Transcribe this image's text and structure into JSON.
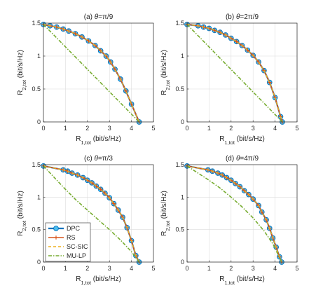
{
  "colors": {
    "DPC": "#0072BD",
    "DPC_marker_fill": "#4DBEEE",
    "RS": "#D95319",
    "SC-SIC": "#EDB120",
    "MU-LP": "#77AC30",
    "axis": "#262626",
    "grid": "#dcdcdc"
  },
  "legend": {
    "placement": "lower-left of panel (c)",
    "entries": [
      "DPC",
      "RS",
      "SC-SIC",
      "MU-LP"
    ]
  },
  "chart_data": [
    {
      "type": "line",
      "title": "(a) θ=π/9",
      "xlabel": "R1,tot (bit/s/Hz)",
      "ylabel": "R2,tot (bit/s/Hz)",
      "xlim": [
        0,
        5
      ],
      "ylim": [
        0,
        1.5
      ],
      "xticks": [
        "0",
        "1",
        "2",
        "3",
        "4",
        "5"
      ],
      "yticks": [
        "0",
        "0.5",
        "1",
        "1.5"
      ],
      "grid": true,
      "series": [
        {
          "name": "DPC",
          "marker": "o",
          "x": [
            0,
            0.3,
            0.6,
            0.9,
            1.15,
            1.45,
            1.75,
            2.05,
            2.35,
            2.6,
            2.85,
            3.05,
            3.25,
            3.5,
            3.75,
            4.0,
            4.35
          ],
          "y": [
            1.48,
            1.46,
            1.44,
            1.41,
            1.38,
            1.34,
            1.29,
            1.23,
            1.16,
            1.08,
            1.0,
            0.91,
            0.8,
            0.65,
            0.47,
            0.27,
            0.0
          ]
        },
        {
          "name": "RS",
          "marker": "+",
          "x": [
            0,
            0.3,
            0.6,
            0.9,
            1.15,
            1.45,
            1.75,
            2.05,
            2.35,
            2.6,
            2.85,
            3.05,
            3.25,
            3.5,
            3.75,
            4.0,
            4.35
          ],
          "y": [
            1.48,
            1.46,
            1.44,
            1.41,
            1.38,
            1.34,
            1.29,
            1.23,
            1.16,
            1.08,
            1.0,
            0.91,
            0.8,
            0.65,
            0.47,
            0.27,
            0.0
          ]
        },
        {
          "name": "SC-SIC",
          "marker": "",
          "x": [
            0,
            0.3,
            0.6,
            0.9,
            1.15,
            1.45,
            1.75,
            2.05,
            2.35,
            2.6,
            2.85,
            3.05,
            3.25,
            3.5,
            3.75,
            4.0,
            4.35
          ],
          "y": [
            1.48,
            1.46,
            1.44,
            1.41,
            1.38,
            1.34,
            1.29,
            1.23,
            1.16,
            1.08,
            1.0,
            0.91,
            0.8,
            0.65,
            0.47,
            0.27,
            0.0
          ]
        },
        {
          "name": "MU-LP",
          "marker": "",
          "x": [
            0,
            4.35
          ],
          "y": [
            1.48,
            0.0
          ]
        }
      ]
    },
    {
      "type": "line",
      "title": "(b) θ=2π/9",
      "xlabel": "R1,tot (bit/s/Hz)",
      "ylabel": "R2,tot (bit/s/Hz)",
      "xlim": [
        0,
        5
      ],
      "ylim": [
        0,
        1.5
      ],
      "xticks": [
        "0",
        "1",
        "2",
        "3",
        "4",
        "5"
      ],
      "yticks": [
        "0",
        "0.5",
        "1",
        "1.5"
      ],
      "grid": true,
      "series": [
        {
          "name": "DPC",
          "marker": "o",
          "x": [
            0,
            0.5,
            0.75,
            1.0,
            1.25,
            1.5,
            1.75,
            2.0,
            2.25,
            2.5,
            2.75,
            3.0,
            3.25,
            3.5,
            3.75,
            4.0,
            4.25,
            4.33
          ],
          "y": [
            1.48,
            1.46,
            1.44,
            1.42,
            1.39,
            1.36,
            1.32,
            1.27,
            1.22,
            1.16,
            1.09,
            1.01,
            0.91,
            0.78,
            0.6,
            0.37,
            0.08,
            0.0
          ]
        },
        {
          "name": "RS",
          "marker": "+",
          "x": [
            0,
            0.5,
            0.75,
            1.0,
            1.25,
            1.5,
            1.75,
            2.0,
            2.25,
            2.5,
            2.75,
            3.0,
            3.25,
            3.5,
            3.75,
            4.0,
            4.25,
            4.33
          ],
          "y": [
            1.48,
            1.46,
            1.44,
            1.42,
            1.39,
            1.36,
            1.32,
            1.27,
            1.22,
            1.16,
            1.09,
            1.01,
            0.91,
            0.78,
            0.6,
            0.37,
            0.08,
            0.0
          ]
        },
        {
          "name": "SC-SIC",
          "marker": "",
          "x": [
            0,
            0.5,
            0.75,
            1.0,
            1.25,
            1.5,
            1.75,
            2.0,
            2.25,
            2.5,
            2.75,
            3.0,
            3.25,
            3.5,
            3.75,
            4.0,
            4.25,
            4.33
          ],
          "y": [
            1.48,
            1.46,
            1.44,
            1.42,
            1.39,
            1.36,
            1.32,
            1.27,
            1.22,
            1.16,
            1.09,
            1.01,
            0.91,
            0.78,
            0.6,
            0.37,
            0.08,
            0.0
          ]
        },
        {
          "name": "MU-LP",
          "marker": "",
          "x": [
            0,
            4.33
          ],
          "y": [
            1.48,
            0.0
          ]
        }
      ]
    },
    {
      "type": "line",
      "title": "(c) θ=π/3",
      "xlabel": "R1,tot (bit/s/Hz)",
      "ylabel": "R2,tot (bit/s/Hz)",
      "xlim": [
        0,
        5
      ],
      "ylim": [
        0,
        1.5
      ],
      "xticks": [
        "0",
        "1",
        "2",
        "3",
        "4",
        "5"
      ],
      "yticks": [
        "0",
        "0.5",
        "1",
        "1.5"
      ],
      "grid": true,
      "series": [
        {
          "name": "DPC",
          "marker": "o",
          "x": [
            0,
            0.9,
            1.1,
            1.3,
            1.55,
            1.8,
            2.0,
            2.2,
            2.4,
            2.6,
            2.8,
            3.0,
            3.2,
            3.4,
            3.6,
            3.8,
            4.0,
            4.2,
            4.35
          ],
          "y": [
            1.48,
            1.42,
            1.4,
            1.37,
            1.34,
            1.3,
            1.26,
            1.22,
            1.17,
            1.12,
            1.06,
            0.99,
            0.9,
            0.8,
            0.69,
            0.53,
            0.33,
            0.1,
            0.0
          ]
        },
        {
          "name": "RS",
          "marker": "+",
          "x": [
            0,
            0.9,
            1.1,
            1.3,
            1.55,
            1.8,
            2.0,
            2.2,
            2.4,
            2.6,
            2.8,
            3.0,
            3.2,
            3.4,
            3.6,
            3.8,
            4.0,
            4.2,
            4.35
          ],
          "y": [
            1.48,
            1.42,
            1.4,
            1.37,
            1.34,
            1.3,
            1.26,
            1.22,
            1.17,
            1.12,
            1.06,
            0.99,
            0.9,
            0.8,
            0.69,
            0.53,
            0.33,
            0.1,
            0.0
          ]
        },
        {
          "name": "SC-SIC",
          "marker": "",
          "x": [
            0,
            0.9,
            1.1,
            1.3,
            1.55,
            1.8,
            2.0,
            2.2,
            2.4,
            2.6,
            2.8,
            3.0,
            3.2,
            3.4,
            3.6,
            3.8,
            4.0,
            4.2,
            4.35
          ],
          "y": [
            1.48,
            1.42,
            1.4,
            1.37,
            1.34,
            1.3,
            1.26,
            1.22,
            1.17,
            1.12,
            1.06,
            0.99,
            0.9,
            0.8,
            0.69,
            0.53,
            0.33,
            0.1,
            0.0
          ]
        },
        {
          "name": "MU-LP",
          "marker": "",
          "x": [
            0,
            0.5,
            1.0,
            1.5,
            2.0,
            2.5,
            3.0,
            3.5,
            4.0,
            4.35
          ],
          "y": [
            1.48,
            1.3,
            1.12,
            0.95,
            0.8,
            0.65,
            0.5,
            0.34,
            0.16,
            0.0
          ]
        }
      ]
    },
    {
      "type": "line",
      "title": "(d) θ=4π/9",
      "xlabel": "R1,tot (bit/s/Hz)",
      "ylabel": "R2,tot (bit/s/Hz)",
      "xlim": [
        0,
        5
      ],
      "ylim": [
        0,
        1.5
      ],
      "xticks": [
        "0",
        "1",
        "2",
        "3",
        "4",
        "5"
      ],
      "yticks": [
        "0",
        "0.5",
        "1",
        "1.5"
      ],
      "grid": true,
      "series": [
        {
          "name": "DPC",
          "marker": "o",
          "x": [
            0,
            0.95,
            1.15,
            1.4,
            1.6,
            1.8,
            2.0,
            2.2,
            2.4,
            2.6,
            2.8,
            3.0,
            3.25,
            3.4,
            3.6,
            3.75,
            3.9,
            4.05,
            4.2,
            4.3
          ],
          "y": [
            1.48,
            1.42,
            1.4,
            1.37,
            1.34,
            1.3,
            1.26,
            1.21,
            1.16,
            1.1,
            1.04,
            0.97,
            0.87,
            0.77,
            0.65,
            0.52,
            0.37,
            0.23,
            0.08,
            0.0
          ]
        },
        {
          "name": "RS",
          "marker": "+",
          "x": [
            0,
            0.95,
            1.15,
            1.4,
            1.6,
            1.8,
            2.0,
            2.2,
            2.4,
            2.6,
            2.8,
            3.0,
            3.25,
            3.4,
            3.6,
            3.75,
            3.9,
            4.05,
            4.2,
            4.3
          ],
          "y": [
            1.48,
            1.42,
            1.4,
            1.37,
            1.34,
            1.3,
            1.26,
            1.21,
            1.16,
            1.1,
            1.04,
            0.97,
            0.87,
            0.77,
            0.65,
            0.52,
            0.37,
            0.23,
            0.08,
            0.0
          ]
        },
        {
          "name": "SC-SIC",
          "marker": "",
          "x": [
            0,
            0.95,
            1.15,
            1.4,
            1.6,
            1.8,
            2.0,
            2.2,
            2.4,
            2.6,
            2.8,
            3.0,
            3.25,
            3.4,
            3.6,
            3.75,
            3.9,
            4.05,
            4.2,
            4.3
          ],
          "y": [
            1.48,
            1.42,
            1.4,
            1.37,
            1.34,
            1.3,
            1.26,
            1.21,
            1.16,
            1.1,
            1.04,
            0.97,
            0.87,
            0.77,
            0.65,
            0.52,
            0.37,
            0.23,
            0.08,
            0.0
          ]
        },
        {
          "name": "MU-LP",
          "marker": "",
          "x": [
            0,
            0.5,
            1.0,
            1.5,
            2.0,
            2.5,
            3.0,
            3.5,
            3.9,
            4.3
          ],
          "y": [
            1.48,
            1.37,
            1.26,
            1.14,
            1.0,
            0.85,
            0.68,
            0.48,
            0.28,
            0.0
          ]
        }
      ]
    }
  ]
}
